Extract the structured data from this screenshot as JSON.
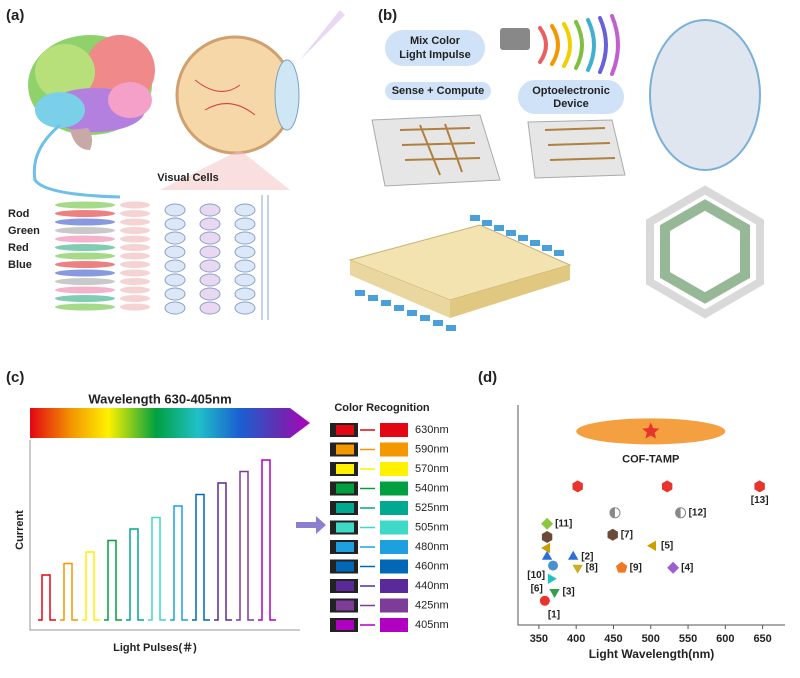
{
  "panel_a": {
    "label": "(a)",
    "visual_cells": "Visual Cells",
    "cell_types": [
      "Rod",
      "Green",
      "Red",
      "Blue"
    ]
  },
  "panel_b": {
    "label": "(b)",
    "mix_color": [
      "Mix Color",
      "Light Impulse"
    ],
    "sense_compute": "Sense + Compute",
    "device": [
      "Optoelectronic",
      "Device"
    ]
  },
  "panel_c": {
    "label": "(c)",
    "banner": "Wavelength 630-405nm",
    "recognition_title": "Color Recognition",
    "y_label": "Current",
    "x_label": "Light Pulses(＃)",
    "colors": [
      {
        "wavelength": "630nm",
        "color": "#e30613"
      },
      {
        "wavelength": "590nm",
        "color": "#f39800"
      },
      {
        "wavelength": "570nm",
        "color": "#fff100"
      },
      {
        "wavelength": "540nm",
        "color": "#00a040"
      },
      {
        "wavelength": "525nm",
        "color": "#00a98f"
      },
      {
        "wavelength": "505nm",
        "color": "#3fd9c8"
      },
      {
        "wavelength": "480nm",
        "color": "#1ea0e0"
      },
      {
        "wavelength": "460nm",
        "color": "#0068b7"
      },
      {
        "wavelength": "440nm",
        "color": "#5a2a9a"
      },
      {
        "wavelength": "425nm",
        "color": "#7d3c98"
      },
      {
        "wavelength": "405nm",
        "color": "#b000c0"
      }
    ]
  },
  "chart_data": {
    "type": "scatter",
    "panel_label": "(d)",
    "x_label": "Light Wavelength(nm)",
    "xlim": [
      322,
      680
    ],
    "xticks": [
      350,
      400,
      450,
      500,
      550,
      600,
      650
    ],
    "ylim": [
      0,
      100
    ],
    "highlight": {
      "name": "COF-TAMP",
      "x": 500,
      "value": 88,
      "x_range": [
        400,
        600
      ],
      "color": "#f4a040",
      "marker_color": "#e8342c"
    },
    "x": [
      402,
      522,
      646,
      452,
      540,
      361,
      361,
      361,
      449,
      503,
      361,
      396,
      369,
      402,
      461,
      530,
      366,
      371,
      358
    ],
    "values": [
      63,
      63,
      63,
      51,
      51,
      46,
      40,
      35,
      41,
      36,
      31,
      31,
      27,
      26,
      26,
      26,
      21,
      15,
      11
    ],
    "labels": [
      null,
      null,
      "[13]",
      null,
      "[12]",
      "[11]",
      null,
      null,
      "[7]",
      "[5]",
      null,
      "[2]",
      "[10]",
      "[8]",
      "[9]",
      "[4]",
      "[6]",
      "[3]",
      "[1]"
    ],
    "shapes": [
      "hexagon",
      "hexagon",
      "hexagon",
      "halfcircle",
      "halfcircle",
      "diamond",
      "hexagon",
      "triangle-left",
      "hexagon",
      "triangle-left",
      "triangle-up",
      "triangle-up",
      "circle",
      "triangle-down",
      "pentagon",
      "diamond",
      "triangle-right",
      "triangle-down",
      "circle"
    ],
    "colors": [
      "#e8342c",
      "#e8342c",
      "#e8342c",
      "#888888",
      "#888888",
      "#8cc63f",
      "#6b4a3a",
      "#c9a000",
      "#6b4a3a",
      "#c9a000",
      "#2a6fd6",
      "#2a6fd6",
      "#4a8fd0",
      "#c9b020",
      "#f07820",
      "#9b5fd0",
      "#20c0c8",
      "#30a050",
      "#e8342c"
    ]
  }
}
